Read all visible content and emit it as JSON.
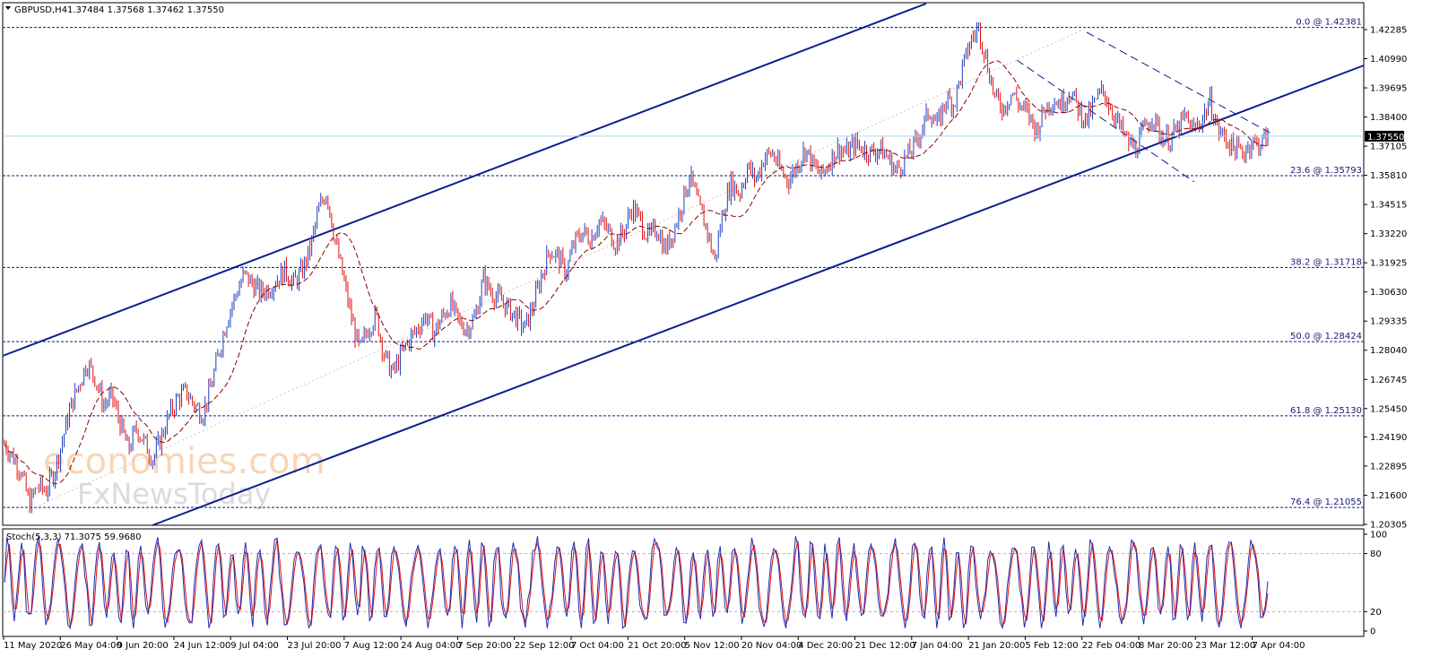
{
  "header": {
    "symbol": "GBPUSD,H4",
    "ohlc": "1.37484 1.37568 1.37462 1.37550"
  },
  "watermark": {
    "brand": "economies.com",
    "sub": "FxNewsToday"
  },
  "colors": {
    "candle_up": "#1f3fbf",
    "candle_down": "#e01010",
    "moving_average": "#8b0000",
    "channel": "#0a1f8c",
    "fib": "#1a1a7a",
    "price_line": "#a8d8f0",
    "stoch_main": "#1e2fb0",
    "stoch_signal": "#e01010"
  },
  "stoch": {
    "label": "Stoch(5,3,3) 71.3075 59.9680",
    "levels": [
      100,
      80,
      20,
      0
    ]
  },
  "chart_data": {
    "type": "line",
    "title": "GBPUSD,H4",
    "xlabel": "",
    "ylabel": "",
    "ylim": [
      1.1972,
      1.4258
    ],
    "price_ticks": [
      "1.42285",
      "1.40990",
      "1.39695",
      "1.38400",
      "1.37105",
      "1.35810",
      "1.34515",
      "1.33220",
      "1.31925",
      "1.30630",
      "1.29335",
      "1.28040",
      "1.26745",
      "1.25450",
      "1.24190",
      "1.22895",
      "1.21600",
      "1.20305"
    ],
    "current_price": "1.37550",
    "fib_levels": [
      {
        "label": "0.0 @ 1.42381",
        "value": 1.42381
      },
      {
        "label": "23.6 @ 1.35793",
        "value": 1.35793
      },
      {
        "label": "38.2 @ 1.31718",
        "value": 1.31718
      },
      {
        "label": "50.0 @ 1.28424",
        "value": 1.28424
      },
      {
        "label": "61.8 @ 1.25130",
        "value": 1.2513
      },
      {
        "label": "76.4 @ 1.21055",
        "value": 1.21055
      }
    ],
    "x_labels": [
      "11 May 2020",
      "26 May 04:00",
      "9 Jun 20:00",
      "24 Jun 12:00",
      "9 Jul 04:00",
      "23 Jul 20:00",
      "7 Aug 12:00",
      "24 Aug 04:00",
      "7 Sep 20:00",
      "22 Sep 12:00",
      "7 Oct 04:00",
      "21 Oct 20:00",
      "5 Nov 12:00",
      "20 Nov 04:00",
      "4 Dec 20:00",
      "21 Dec 12:00",
      "7 Jan 04:00",
      "21 Jan 20:00",
      "5 Feb 12:00",
      "22 Feb 04:00",
      "8 Mar 20:00",
      "23 Mar 12:00",
      "7 Apr 04:00"
    ],
    "price_path": [
      [
        0,
        1.239
      ],
      [
        2,
        1.227
      ],
      [
        3,
        1.212
      ],
      [
        4,
        1.22
      ],
      [
        5,
        1.218
      ],
      [
        6,
        1.226
      ],
      [
        7,
        1.24
      ],
      [
        8,
        1.255
      ],
      [
        9,
        1.265
      ],
      [
        10,
        1.275
      ],
      [
        11,
        1.268
      ],
      [
        12,
        1.256
      ],
      [
        13,
        1.26
      ],
      [
        14,
        1.248
      ],
      [
        15,
        1.236
      ],
      [
        16,
        1.246
      ],
      [
        17,
        1.239
      ],
      [
        18,
        1.232
      ],
      [
        19,
        1.242
      ],
      [
        20,
        1.252
      ],
      [
        21,
        1.259
      ],
      [
        22,
        1.262
      ],
      [
        23,
        1.256
      ],
      [
        24,
        1.252
      ],
      [
        25,
        1.264
      ],
      [
        26,
        1.28
      ],
      [
        27,
        1.295
      ],
      [
        28,
        1.305
      ],
      [
        29,
        1.314
      ],
      [
        30,
        1.31
      ],
      [
        31,
        1.306
      ],
      [
        32,
        1.308
      ],
      [
        33,
        1.312
      ],
      [
        34,
        1.316
      ],
      [
        35,
        1.31
      ],
      [
        36,
        1.315
      ],
      [
        37,
        1.325
      ],
      [
        38,
        1.342
      ],
      [
        39,
        1.351
      ],
      [
        40,
        1.33
      ],
      [
        41,
        1.313
      ],
      [
        42,
        1.295
      ],
      [
        43,
        1.28
      ],
      [
        44,
        1.29
      ],
      [
        45,
        1.296
      ],
      [
        46,
        1.278
      ],
      [
        47,
        1.27
      ],
      [
        48,
        1.278
      ],
      [
        49,
        1.285
      ],
      [
        50,
        1.29
      ],
      [
        51,
        1.296
      ],
      [
        52,
        1.288
      ],
      [
        53,
        1.295
      ],
      [
        54,
        1.301
      ],
      [
        55,
        1.293
      ],
      [
        56,
        1.29
      ],
      [
        57,
        1.295
      ],
      [
        58,
        1.312
      ],
      [
        59,
        1.306
      ],
      [
        60,
        1.303
      ],
      [
        61,
        1.299
      ],
      [
        62,
        1.295
      ],
      [
        63,
        1.29
      ],
      [
        64,
        1.3
      ],
      [
        65,
        1.313
      ],
      [
        66,
        1.325
      ],
      [
        67,
        1.322
      ],
      [
        68,
        1.315
      ],
      [
        69,
        1.328
      ],
      [
        70,
        1.333
      ],
      [
        71,
        1.33
      ],
      [
        72,
        1.338
      ],
      [
        73,
        1.334
      ],
      [
        74,
        1.328
      ],
      [
        75,
        1.333
      ],
      [
        76,
        1.344
      ],
      [
        77,
        1.338
      ],
      [
        78,
        1.33
      ],
      [
        79,
        1.335
      ],
      [
        80,
        1.325
      ],
      [
        81,
        1.333
      ],
      [
        82,
        1.345
      ],
      [
        83,
        1.358
      ],
      [
        84,
        1.345
      ],
      [
        85,
        1.335
      ],
      [
        86,
        1.32
      ],
      [
        87,
        1.342
      ],
      [
        88,
        1.355
      ],
      [
        89,
        1.35
      ],
      [
        90,
        1.362
      ],
      [
        91,
        1.356
      ],
      [
        92,
        1.366
      ],
      [
        93,
        1.368
      ],
      [
        94,
        1.36
      ],
      [
        95,
        1.356
      ],
      [
        96,
        1.363
      ],
      [
        97,
        1.37
      ],
      [
        98,
        1.362
      ],
      [
        99,
        1.358
      ],
      [
        100,
        1.365
      ],
      [
        101,
        1.37
      ],
      [
        102,
        1.368
      ],
      [
        103,
        1.372
      ],
      [
        104,
        1.37
      ],
      [
        105,
        1.368
      ],
      [
        106,
        1.37
      ],
      [
        107,
        1.366
      ],
      [
        108,
        1.36
      ],
      [
        109,
        1.365
      ],
      [
        110,
        1.37
      ],
      [
        111,
        1.378
      ],
      [
        112,
        1.387
      ],
      [
        113,
        1.38
      ],
      [
        114,
        1.392
      ],
      [
        115,
        1.39
      ],
      [
        116,
        1.405
      ],
      [
        117,
        1.418
      ],
      [
        118,
        1.4238
      ],
      [
        119,
        1.408
      ],
      [
        120,
        1.392
      ],
      [
        121,
        1.388
      ],
      [
        122,
        1.395
      ],
      [
        123,
        1.389
      ],
      [
        124,
        1.385
      ],
      [
        125,
        1.378
      ],
      [
        126,
        1.388
      ],
      [
        127,
        1.392
      ],
      [
        128,
        1.39
      ],
      [
        129,
        1.396
      ],
      [
        130,
        1.388
      ],
      [
        131,
        1.382
      ],
      [
        132,
        1.39
      ],
      [
        133,
        1.396
      ],
      [
        134,
        1.388
      ],
      [
        135,
        1.38
      ],
      [
        136,
        1.373
      ],
      [
        137,
        1.37
      ],
      [
        138,
        1.378
      ],
      [
        139,
        1.385
      ],
      [
        140,
        1.376
      ],
      [
        141,
        1.374
      ],
      [
        142,
        1.378
      ],
      [
        143,
        1.384
      ],
      [
        144,
        1.378
      ],
      [
        145,
        1.383
      ],
      [
        146,
        1.391
      ],
      [
        147,
        1.378
      ],
      [
        148,
        1.374
      ],
      [
        149,
        1.37
      ],
      [
        150,
        1.368
      ],
      [
        151,
        1.373
      ],
      [
        152,
        1.372
      ],
      [
        153,
        1.3755
      ]
    ]
  }
}
